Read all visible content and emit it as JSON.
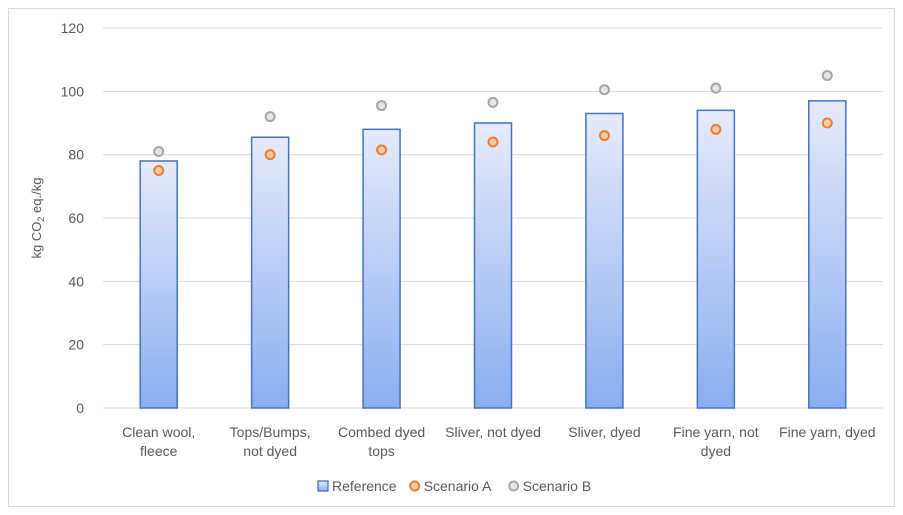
{
  "chart_data": {
    "type": "bar",
    "title": "",
    "xlabel": "",
    "ylabel_main": "kg CO",
    "ylabel_sub": "2",
    "ylabel_rest": " eq./kg",
    "ylim": [
      0,
      120
    ],
    "yticks": [
      0,
      20,
      40,
      60,
      80,
      100,
      120
    ],
    "grid": true,
    "legend_position": "bottom",
    "categories": [
      [
        "Clean wool,",
        "fleece"
      ],
      [
        "Tops/Bumps,",
        "not dyed"
      ],
      [
        "Combed dyed",
        "tops"
      ],
      [
        "Sliver, not dyed"
      ],
      [
        "Sliver, dyed"
      ],
      [
        "Fine yarn, not",
        "dyed"
      ],
      [
        "Fine yarn, dyed"
      ]
    ],
    "series": [
      {
        "name": "Reference",
        "kind": "bar",
        "values": [
          78,
          85.5,
          88,
          90,
          93,
          94,
          97
        ],
        "color": "#4472c4"
      },
      {
        "name": "Scenario A",
        "kind": "marker",
        "values": [
          75,
          80,
          81.5,
          84,
          86,
          88,
          90
        ],
        "color": "#ed7d31"
      },
      {
        "name": "Scenario B",
        "kind": "marker",
        "values": [
          81,
          92,
          95.5,
          96.5,
          100.5,
          101,
          105
        ],
        "color": "#a5a5a5"
      }
    ]
  }
}
